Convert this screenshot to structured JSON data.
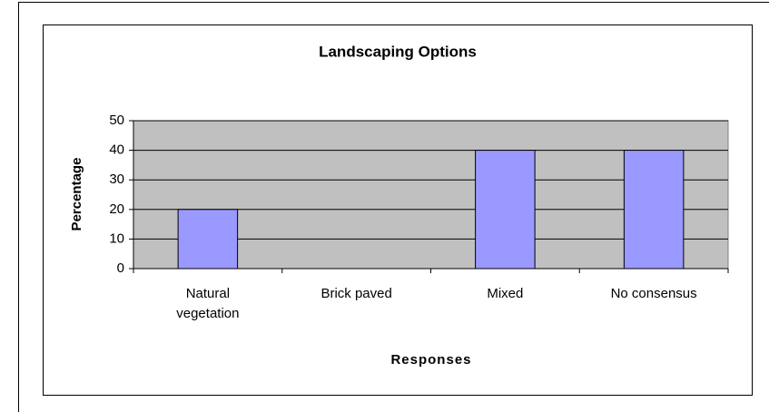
{
  "chart_data": {
    "type": "bar",
    "title": "Landscaping Options",
    "x_label": "Responses",
    "y_label": "Percentage",
    "categories": [
      "Natural vegetation",
      "Brick paved",
      "Mixed",
      "No consensus"
    ],
    "values": [
      20,
      0,
      40,
      40
    ],
    "color": "#9999ff",
    "ylim": [
      0,
      50
    ],
    "yticks": [
      0,
      10,
      20,
      30,
      40,
      50
    ],
    "grid": true
  }
}
